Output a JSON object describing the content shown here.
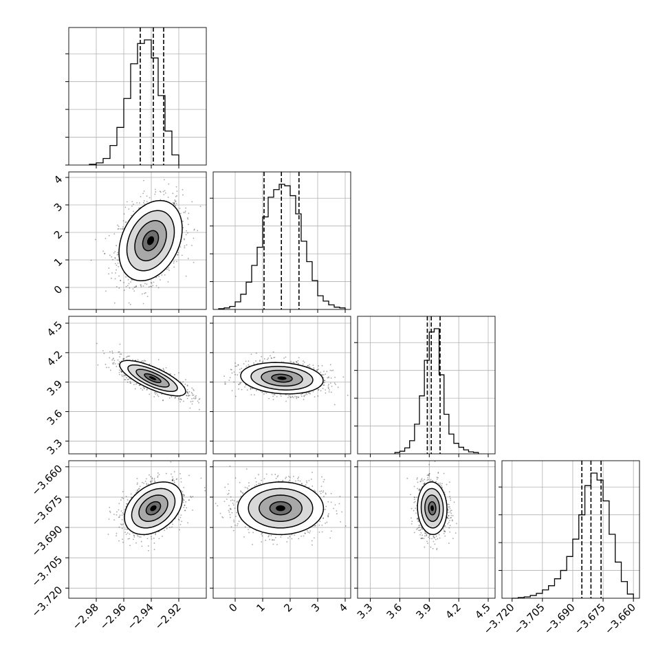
{
  "chart_data": {
    "type": "corner",
    "grid": true,
    "parameters": [
      {
        "range": [
          -3.0,
          -2.9
        ],
        "ticks": [
          -2.98,
          -2.96,
          -2.94,
          -2.92
        ],
        "tick_labels": [
          "−2.98",
          "−2.96",
          "−2.94",
          "−2.92"
        ],
        "quantiles": [
          -2.948,
          -2.9385,
          -2.931
        ]
      },
      {
        "range": [
          -0.8,
          4.2
        ],
        "ticks": [
          0,
          1,
          2,
          3,
          4
        ],
        "tick_labels": [
          "0",
          "1",
          "2",
          "3",
          "4"
        ],
        "quantiles": [
          1.05,
          1.68,
          2.32
        ]
      },
      {
        "range": [
          3.17,
          4.57
        ],
        "ticks": [
          3.3,
          3.6,
          3.9,
          4.2,
          4.5
        ],
        "tick_labels": [
          "3.3",
          "3.6",
          "3.9",
          "4.2",
          "4.5"
        ],
        "quantiles": [
          3.88,
          3.92,
          4.01
        ]
      },
      {
        "range": [
          -3.725,
          -3.657
        ],
        "ticks": [
          -3.72,
          -3.705,
          -3.69,
          -3.675,
          -3.66
        ],
        "tick_labels": [
          "−3.720",
          "−3.705",
          "−3.690",
          "−3.675",
          "−3.660"
        ],
        "quantiles": [
          -3.6855,
          -3.681,
          -3.676
        ]
      }
    ],
    "histograms": [
      {
        "param": 0,
        "bin_edges": [
          -2.985,
          -2.98,
          -2.975,
          -2.97,
          -2.965,
          -2.96,
          -2.955,
          -2.95,
          -2.945,
          -2.94,
          -2.935,
          -2.93,
          -2.925,
          -2.92
        ],
        "counts": [
          1,
          3,
          9,
          27,
          52,
          92,
          140,
          168,
          173,
          148,
          96,
          47,
          14
        ]
      },
      {
        "param": 1,
        "bin_edges": [
          -0.6,
          -0.4,
          -0.2,
          0.0,
          0.2,
          0.4,
          0.6,
          0.8,
          1.0,
          1.2,
          1.4,
          1.6,
          1.8,
          2.0,
          2.2,
          2.4,
          2.6,
          2.8,
          3.0,
          3.2,
          3.4,
          3.6,
          3.8,
          4.0
        ],
        "counts": [
          1,
          2,
          4,
          10,
          20,
          36,
          58,
          82,
          122,
          148,
          158,
          165,
          163,
          150,
          126,
          90,
          63,
          38,
          18,
          11,
          6,
          3,
          2
        ]
      },
      {
        "param": 2,
        "bin_edges": [
          3.55,
          3.6,
          3.65,
          3.7,
          3.75,
          3.8,
          3.85,
          3.9,
          3.95,
          4.0,
          4.05,
          4.1,
          4.15,
          4.2,
          4.25,
          4.3,
          4.35,
          4.4
        ],
        "counts": [
          2,
          4,
          9,
          20,
          45,
          88,
          142,
          185,
          190,
          120,
          60,
          30,
          16,
          10,
          6,
          3,
          2
        ]
      },
      {
        "param": 3,
        "bin_edges": [
          -3.72,
          -3.717,
          -3.714,
          -3.711,
          -3.708,
          -3.705,
          -3.702,
          -3.699,
          -3.696,
          -3.693,
          -3.69,
          -3.687,
          -3.684,
          -3.681,
          -3.678,
          -3.675,
          -3.672,
          -3.669,
          -3.666,
          -3.663,
          -3.66
        ],
        "counts": [
          0,
          1,
          2,
          4,
          7,
          12,
          18,
          28,
          40,
          60,
          85,
          120,
          162,
          180,
          170,
          140,
          92,
          52,
          24,
          6
        ]
      }
    ],
    "joint_2d": [
      {
        "x_param": 0,
        "y_param": 1,
        "mean": [
          -2.9405,
          1.7
        ],
        "sd": [
          0.0115,
          0.73
        ],
        "rho": 0.3,
        "levels": [
          0.5,
          1.0,
          1.5,
          2.0
        ]
      },
      {
        "x_param": 0,
        "y_param": 2,
        "mean": [
          -2.939,
          3.94
        ],
        "sd": [
          0.012,
          0.09
        ],
        "rho": -0.75,
        "levels": [
          0.5,
          1.0,
          1.5,
          2.0
        ]
      },
      {
        "x_param": 1,
        "y_param": 2,
        "mean": [
          1.7,
          3.94
        ],
        "sd": [
          0.75,
          0.08
        ],
        "rho": -0.15,
        "levels": [
          0.5,
          1.0,
          1.5,
          2.0
        ]
      },
      {
        "x_param": 0,
        "y_param": 3,
        "mean": [
          -2.9385,
          -3.6805
        ],
        "sd": [
          0.0105,
          0.0065
        ],
        "rho": 0.35,
        "levels": [
          0.5,
          1.0,
          1.5,
          2.0
        ]
      },
      {
        "x_param": 1,
        "y_param": 3,
        "mean": [
          1.65,
          -3.6805
        ],
        "sd": [
          0.78,
          0.0065
        ],
        "rho": 0.0,
        "levels": [
          0.5,
          1.0,
          1.5,
          2.0
        ]
      },
      {
        "x_param": 2,
        "y_param": 3,
        "mean": [
          3.93,
          -3.6805
        ],
        "sd": [
          0.075,
          0.0065
        ],
        "rho": -0.05,
        "levels": [
          0.5,
          1.0,
          1.5,
          2.0
        ]
      }
    ]
  }
}
